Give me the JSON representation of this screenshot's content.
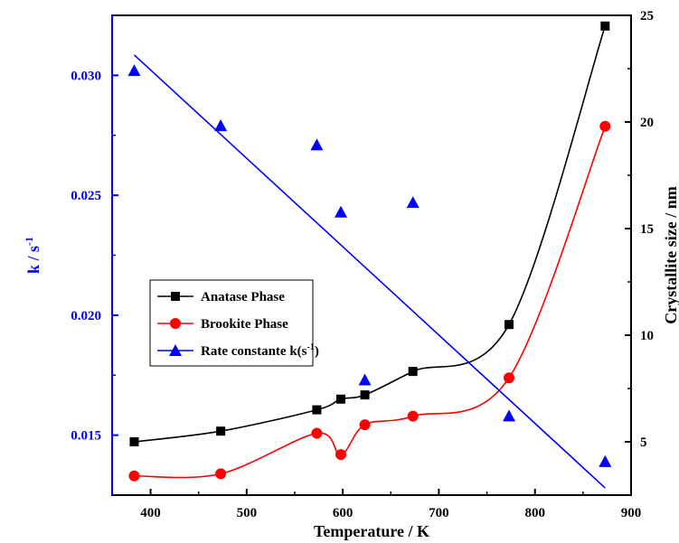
{
  "chart_data": {
    "type": "scatter",
    "xlabel": "Temperature / K",
    "ylabel_left": "k / s",
    "ylabel_left_sup": "-1",
    "ylabel_right": "Crystallite size / nm",
    "xlim": [
      360,
      900
    ],
    "ylim_left": [
      0.0125,
      0.0325
    ],
    "ylim_right": [
      2.5,
      25
    ],
    "x_ticks": [
      400,
      500,
      600,
      700,
      800,
      900
    ],
    "y_left_ticks": [
      0.015,
      0.02,
      0.025,
      0.03
    ],
    "y_left_tick_labels": [
      "0.015",
      "0.020",
      "0.025",
      "0.030"
    ],
    "y_right_ticks": [
      5,
      10,
      15,
      20,
      25
    ],
    "grid": false,
    "legend_position": "middle-left",
    "series": [
      {
        "name": "Anatase Phase",
        "axis": "right",
        "marker": "square",
        "color": "#000000",
        "x": [
          383,
          473,
          573,
          598,
          623,
          673,
          773,
          873
        ],
        "y": [
          5.0,
          5.5,
          6.5,
          7.0,
          7.2,
          8.3,
          10.5,
          24.5
        ],
        "fit": true
      },
      {
        "name": "Brookite Phase",
        "axis": "right",
        "marker": "circle",
        "color": "#ff0000",
        "x": [
          383,
          473,
          573,
          598,
          623,
          673,
          773,
          873
        ],
        "y": [
          3.4,
          3.5,
          5.4,
          4.4,
          5.8,
          6.2,
          8.0,
          19.8
        ],
        "fit": true
      },
      {
        "name": "Rate constante k(s",
        "name_sup": "-1",
        "name_suffix": ")",
        "axis": "left",
        "marker": "triangle",
        "color": "#0000ff",
        "x": [
          383,
          473,
          573,
          598,
          623,
          673,
          773,
          873
        ],
        "y": [
          0.0302,
          0.0279,
          0.0271,
          0.0243,
          0.0173,
          0.0247,
          0.0158,
          0.0139
        ],
        "linear_fit": {
          "x": [
            383,
            873
          ],
          "y": [
            0.03085,
            0.0128
          ]
        }
      }
    ]
  }
}
